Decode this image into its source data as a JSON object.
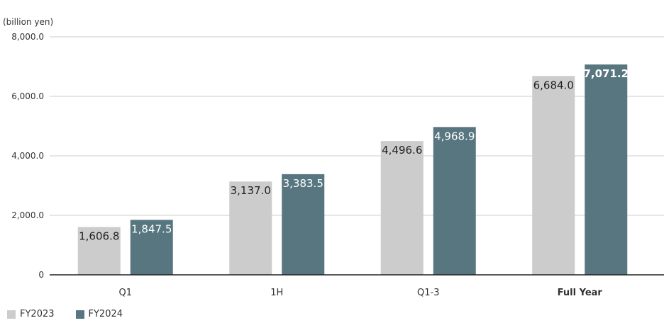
{
  "chart_data": {
    "type": "bar",
    "unit_label": "(billion yen)",
    "categories": [
      "Q1",
      "1H",
      "Q1-3",
      "Full Year"
    ],
    "highlight_category": "Full Year",
    "series": [
      {
        "name": "FY2023",
        "color": "#cccccc",
        "values": [
          1606.8,
          3137.0,
          4496.6,
          6684.0
        ],
        "labels": [
          "1,606.8",
          "3,137.0",
          "4,496.6",
          "6,684.0"
        ]
      },
      {
        "name": "FY2024",
        "color": "#587680",
        "values": [
          1847.5,
          3383.5,
          4968.9,
          7071.2
        ],
        "labels": [
          "1,847.5",
          "3,383.5",
          "4,968.9",
          "7,071.2"
        ]
      }
    ],
    "yticks": [
      0,
      2000,
      4000,
      6000,
      8000
    ],
    "ytick_labels": [
      "0",
      "2,000.0",
      "4,000.0",
      "6,000.0",
      "8,000.0"
    ],
    "ylim": [
      0,
      8000
    ],
    "grid": true,
    "legend_position": "bottom-left"
  }
}
